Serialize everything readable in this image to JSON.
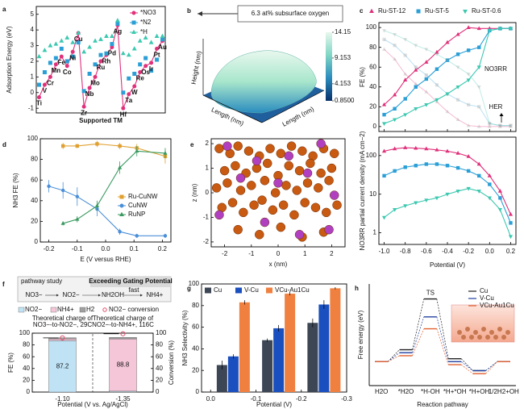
{
  "chart_data": [
    {
      "panel": "a",
      "type": "line",
      "ylabel": "Adsorption Energy (eV)",
      "xlabel": "Supported TM",
      "categories": [
        "Ti",
        "V",
        "Cr",
        "Mn",
        "Fe",
        "Co",
        "Ni",
        "Cu",
        "Zr",
        "Nb",
        "Mo",
        "Ru",
        "Rh",
        "Pd",
        "Ag",
        "Hf",
        "Ta",
        "W",
        "Re",
        "Os",
        "Ir",
        "Pt",
        "Au"
      ],
      "ylim": [
        -1.3,
        5.5
      ],
      "yticks": [
        -1,
        0,
        1,
        2,
        3,
        4,
        5
      ],
      "legend": "upper right",
      "series": [
        {
          "name": "*NO3",
          "color": "#e0307a",
          "marker": "circle",
          "line": true,
          "values": [
            -0.3,
            0.5,
            1.0,
            1.8,
            2.3,
            1.7,
            2.6,
            3.8,
            -0.9,
            0.3,
            1.0,
            2.0,
            2.4,
            2.9,
            4.3,
            -1.0,
            -0.1,
            0.4,
            1.3,
            1.7,
            1.9,
            2.8,
            3.3
          ]
        },
        {
          "name": "*N2",
          "color": "#2a9fd6",
          "marker": "square",
          "line": false,
          "values": [
            0.5,
            1.3,
            1.9,
            2.2,
            2.8,
            2.0,
            2.3,
            3.2,
            0.1,
            1.2,
            1.8,
            2.4,
            2.5,
            3.1,
            4.4,
            0.0,
            0.9,
            1.2,
            1.8,
            2.2,
            1.4,
            2.1,
            3.4
          ]
        },
        {
          "name": "*H",
          "color": "#3cc8b0",
          "marker": "triangle",
          "line": false,
          "values": [
            2.3,
            2.7,
            3.0,
            3.1,
            3.3,
            3.5,
            3.2,
            3.8,
            2.6,
            2.9,
            3.3,
            3.4,
            3.6,
            3.6,
            4.6,
            2.5,
            2.4,
            2.8,
            3.3,
            3.5,
            3.2,
            3.6,
            3.6
          ]
        }
      ]
    },
    {
      "panel": "b",
      "type": "surface",
      "title": "6.3 at% subsurface oxygen",
      "xlabel": "Length (nm)",
      "ylabel": "Length (nm)",
      "zlabel": "Height (nm)",
      "colorbar_lim": [
        0.85,
        14.15
      ],
      "colorbar_ticks": [
        14.15,
        9.153,
        4.153,
        {
          "value": 0.85,
          "label": "0.8500"
        }
      ],
      "colormap": [
        "#08306b",
        "#2a8cbe",
        "#7fd6c4",
        "#e8f8ee"
      ]
    },
    {
      "panel": "c",
      "type": "line",
      "ylabel": "FE (%)",
      "annotations": [
        "NO3RR",
        "HER"
      ],
      "legend": "top",
      "x": [
        -1,
        -0.9,
        -0.8,
        -0.7,
        -0.6,
        -0.5,
        -0.4,
        -0.3,
        -0.2,
        -0.1,
        0,
        0.1,
        0.2
      ],
      "xlim": [
        -1.05,
        0.25
      ],
      "xticks": [
        {
          "value": -1,
          "label": "-1.0"
        },
        -0.8,
        -0.6,
        -0.4,
        -0.2,
        {
          "value": 0,
          "label": "0.0"
        },
        0.2
      ],
      "ylim": [
        -5,
        105
      ],
      "yticks": [
        0,
        20,
        40,
        60,
        80,
        100
      ],
      "series": [
        {
          "name": "Ru-ST-12",
          "color": "#e0307a",
          "marker": "triangle",
          "values": [
            22,
            32,
            47,
            57,
            65,
            75,
            85,
            93,
            100,
            99,
            99,
            99,
            99
          ],
          "her": [
            78,
            68,
            53,
            43,
            35,
            25,
            15,
            7,
            1,
            0,
            0,
            0,
            0
          ]
        },
        {
          "name": "Ru-ST-5",
          "color": "#2a9fd6",
          "marker": "square",
          "values": [
            12,
            18,
            28,
            40,
            48,
            58,
            67,
            73,
            77,
            80,
            97,
            99,
            99
          ],
          "her": [
            88,
            82,
            72,
            60,
            52,
            42,
            33,
            27,
            22,
            20,
            3,
            1,
            1
          ]
        },
        {
          "name": "Ru-ST-0.6",
          "color": "#3cc8b0",
          "marker": "down",
          "values": [
            3,
            7,
            12,
            18,
            22,
            27,
            33,
            40,
            47,
            60,
            97,
            99,
            99
          ],
          "her": [
            97,
            93,
            88,
            82,
            78,
            73,
            67,
            60,
            53,
            40,
            3,
            1,
            1
          ]
        }
      ]
    },
    {
      "type": "line",
      "log": true,
      "ylabel": "NO3RR partial current density (mA cm−2)",
      "xlabel": "Potential (V)",
      "x": [
        -1,
        -0.9,
        -0.8,
        -0.7,
        -0.6,
        -0.5,
        -0.4,
        -0.3,
        -0.2,
        -0.1,
        0,
        0.1,
        0.2
      ],
      "xlim": [
        -1.05,
        0.25
      ],
      "xticks": [
        {
          "value": -1,
          "label": "-1.0"
        },
        -0.8,
        -0.6,
        -0.4,
        -0.2,
        {
          "value": 0,
          "label": "0.0"
        },
        0.2
      ],
      "ylim": [
        0.5,
        300
      ],
      "yticks": [
        1,
        10,
        100
      ],
      "series": [
        {
          "color": "#e0307a",
          "marker": "triangle",
          "values": [
            130,
            150,
            160,
            155,
            150,
            140,
            130,
            115,
            95,
            60,
            30,
            12,
            3
          ]
        },
        {
          "color": "#2a9fd6",
          "marker": "square",
          "values": [
            30,
            40,
            50,
            55,
            60,
            60,
            55,
            48,
            40,
            30,
            18,
            8,
            1.8
          ]
        },
        {
          "color": "#3cc8b0",
          "marker": "down",
          "values": [
            2.5,
            4,
            5,
            6,
            7,
            8,
            10,
            12,
            14,
            12,
            8,
            4,
            0.8
          ]
        }
      ]
    },
    {
      "panel": "d",
      "type": "line",
      "ylabel": "NH3 FE (%)",
      "xlabel": "E (V versus RHE)",
      "legend": "center right",
      "xlim": [
        -0.23,
        0.23
      ],
      "xticks": [
        -0.2,
        -0.1,
        {
          "value": 0,
          "label": "0.0"
        },
        0.1,
        0.2
      ],
      "ylim": [
        0,
        100
      ],
      "yticks": [
        0,
        20,
        40,
        60,
        80,
        100
      ],
      "series": [
        {
          "name": "Ru-CuNW",
          "color": "#e0a030",
          "marker": "square",
          "x": [
            -0.15,
            -0.1,
            -0.03,
            0.05,
            0.11,
            0.21
          ],
          "values": [
            93,
            93,
            95,
            93,
            91,
            83
          ],
          "errors": [
            3,
            2,
            3,
            3,
            4,
            7
          ]
        },
        {
          "name": "CuNW",
          "color": "#4a8fd8",
          "marker": "circle",
          "x": [
            -0.2,
            -0.15,
            -0.1,
            -0.03,
            0.05,
            0.11,
            0.21
          ],
          "values": [
            54,
            50,
            44,
            32,
            10,
            6,
            6
          ],
          "errors": [
            6,
            8,
            9,
            7,
            3,
            2,
            2
          ]
        },
        {
          "name": "RuNP",
          "color": "#3a9a60",
          "marker": "triangle",
          "x": [
            -0.15,
            -0.1,
            -0.03,
            0.05,
            0.11,
            0.21
          ],
          "values": [
            18,
            22,
            35,
            72,
            88,
            86
          ],
          "errors": [
            2,
            3,
            5,
            6,
            5,
            5
          ]
        }
      ]
    },
    {
      "panel": "e",
      "type": "scatter",
      "xlabel": "x (nm)",
      "ylabel": "z (nm)",
      "xlim": [
        -2.5,
        2.5
      ],
      "ylim": [
        -2.2,
        2.2
      ],
      "xticks": [
        -2,
        -1,
        0,
        1,
        2
      ],
      "yticks": [
        -2,
        -1,
        0,
        1,
        2
      ],
      "series": [
        {
          "color": "#c85a12",
          "x": [
            -2.2,
            -1.8,
            -1.5,
            -1.1,
            -0.7,
            -0.3,
            0.1,
            0.5,
            0.9,
            1.3,
            1.7,
            2.1,
            -2.0,
            -1.6,
            -1.2,
            -0.8,
            -0.4,
            0.0,
            0.4,
            0.8,
            1.2,
            1.6,
            2.0,
            -2.3,
            -1.9,
            -1.4,
            -1.0,
            -0.5,
            -0.1,
            0.3,
            0.7,
            1.1,
            1.5,
            1.9,
            -2.1,
            -1.7,
            -1.3,
            -0.9,
            -0.6,
            -0.2,
            0.2,
            0.6,
            1.0,
            1.4,
            1.8,
            2.2,
            -1.5,
            -0.7,
            0.1,
            0.9,
            1.7
          ],
          "values": [
            1.8,
            1.6,
            1.9,
            1.7,
            1.5,
            1.8,
            1.6,
            1.9,
            1.7,
            1.5,
            1.8,
            1.6,
            0.9,
            1.1,
            0.8,
            1.0,
            1.2,
            0.7,
            1.1,
            0.9,
            1.2,
            0.8,
            1.0,
            0.2,
            0.4,
            0.1,
            0.3,
            0.5,
            0.0,
            0.3,
            0.1,
            0.4,
            0.2,
            0.5,
            -0.6,
            -0.4,
            -0.8,
            -0.5,
            -0.3,
            -0.7,
            -0.5,
            -0.9,
            -0.4,
            -0.6,
            -0.8,
            -0.5,
            -1.5,
            -1.7,
            -1.4,
            -1.8,
            -1.6
          ]
        },
        {
          "color": "#b040c0",
          "x": [
            -1.9,
            -0.8,
            0.4,
            1.6,
            -1.4,
            0.0,
            1.1,
            2.1,
            -2.2,
            -0.5,
            0.8,
            1.9
          ],
          "values": [
            1.9,
            1.3,
            1.5,
            2.0,
            0.6,
            0.4,
            0.8,
            -0.1,
            -0.9,
            -1.2,
            -1.7,
            -1.5
          ]
        }
      ]
    },
    {
      "panel": "f",
      "type": "stacked_bar",
      "diagram": {
        "label": "pathway study",
        "gate": "Exceeding Gating Potential",
        "steps": [
          "NO3−",
          "NO2−",
          "NH2OH",
          "NH4+"
        ],
        "fast": "fast"
      },
      "annotations": [
        [
          "Theoretical charge of",
          "NO3−-to-NO2−, 29C"
        ],
        [
          "Theoretical charge of",
          "NO2−-to-NH4+, 116C"
        ]
      ],
      "categories": [
        "-1.10",
        "-1.35"
      ],
      "ylabel": "FE (%)",
      "y2label": "Conversion (%)",
      "xlabel": "Potential (V vs. Ag/AgCl)",
      "ylim": [
        0,
        100
      ],
      "yticks": [
        0,
        20,
        40,
        60,
        80,
        100
      ],
      "y2lim": [
        0,
        100
      ],
      "y2ticks": [
        0,
        20,
        40,
        60,
        80,
        100
      ],
      "series": [
        {
          "name": "NO2−",
          "color": "#bfe3f5",
          "values": [
            87.2,
            1.5
          ]
        },
        {
          "name": "NH4+",
          "color": "#f5c6d8",
          "values": [
            3,
            88.8
          ]
        },
        {
          "name": "H2",
          "color": "#a0a0a0",
          "values": [
            2,
            2.5
          ]
        },
        {
          "name": "NO2− conversion",
          "color": "#e0506e",
          "axis": "y2",
          "values": [
            92,
            99
          ]
        }
      ]
    },
    {
      "panel": "g",
      "type": "grouped_bar",
      "ylabel": "NH3 Selectivity (%)",
      "xlabel": "Potential (V)",
      "legend": "upper left",
      "x": [
        -0.05,
        -0.15,
        -0.25
      ],
      "xlim": [
        0.02,
        -0.3
      ],
      "xticks": [
        {
          "value": 0,
          "label": "0.0"
        },
        -0.1,
        -0.2,
        -0.3
      ],
      "ylim": [
        0,
        100
      ],
      "yticks": [
        0,
        20,
        40,
        60,
        80,
        100
      ],
      "series": [
        {
          "name": "Cu",
          "color": "#3c4654",
          "values": [
            25,
            48,
            64
          ],
          "errors": [
            4,
            1.5,
            4
          ]
        },
        {
          "name": "V-Cu",
          "color": "#1a4fbf",
          "values": [
            33,
            59,
            81
          ],
          "errors": [
            2,
            3,
            4
          ]
        },
        {
          "name": "VCu-Au1Cu",
          "color": "#f08040",
          "values": [
            83,
            91,
            96
          ],
          "errors": [
            2,
            1.5,
            1
          ]
        }
      ]
    },
    {
      "panel": "h",
      "type": "energy_profile",
      "ylabel": "Free energy (eV)",
      "xlabel": "Reaction pathway",
      "annotation": "TS",
      "legend": "upper right",
      "categories": [
        "H2O",
        "*H2O",
        "*H-OH",
        "*H+*OH",
        "*H+OH",
        "1/2H2+OH"
      ],
      "ylim": [
        -0.4,
        1.3
      ],
      "series": [
        {
          "name": "Cu",
          "color": "#222222",
          "values": [
            0,
            0.2,
            1.05,
            0.05,
            -0.15,
            0
          ]
        },
        {
          "name": "V-Cu",
          "color": "#2040a0",
          "values": [
            0,
            0.15,
            0.75,
            0,
            -0.15,
            0
          ]
        },
        {
          "name": "VCu-Au1Cu",
          "color": "#e06030",
          "values": [
            0,
            0.1,
            0.55,
            -0.05,
            -0.2,
            0
          ]
        }
      ]
    }
  ]
}
